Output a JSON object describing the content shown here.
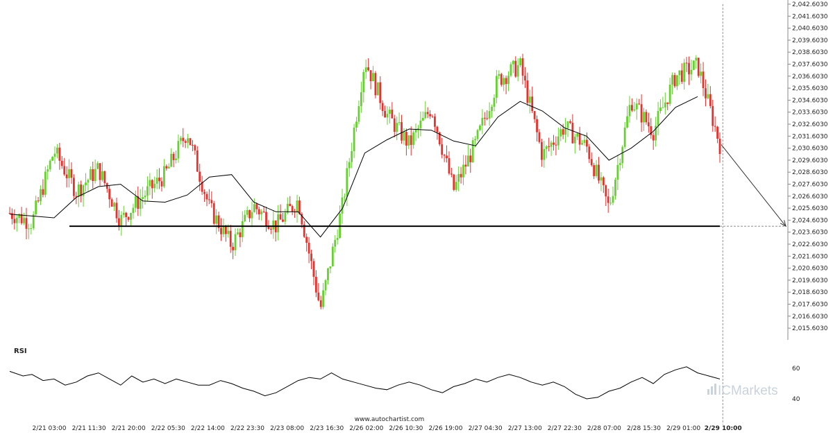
{
  "chart_data": {
    "type": "candlestick",
    "price_axis": {
      "labels": [
        "2,042.6030",
        "2,041.6030",
        "2,040.6030",
        "2,039.6030",
        "2,038.6030",
        "2,037.6030",
        "2,036.6030",
        "2,035.6030",
        "2,034.6030",
        "2,033.6030",
        "2,032.6030",
        "2,031.6030",
        "2,030.6030",
        "2,029.6030",
        "2,028.6030",
        "2,027.6030",
        "2,026.6030",
        "2,025.6030",
        "2,024.6030",
        "2,023.6030",
        "2,022.6030",
        "2,021.6030",
        "2,020.6030",
        "2,019.6030",
        "2,018.6030",
        "2,017.6030",
        "2,016.6030",
        "2,015.6030"
      ],
      "range": [
        2015.603,
        2042.603
      ]
    },
    "time_axis": {
      "labels": [
        "2/21 03:00",
        "2/21 11:30",
        "2/21 20:00",
        "2/22 05:30",
        "2/22 14:00",
        "2/22 23:30",
        "2/23 08:00",
        "2/23 16:30",
        "2/26 02:00",
        "2/26 10:30",
        "2/26 19:00",
        "2/27 04:30",
        "2/27 13:00",
        "2/27 22:30",
        "2/28 07:00",
        "2/28 15:30",
        "2/29 01:00",
        "2/29 10:00"
      ],
      "current_index": 17
    },
    "support_level": 2024.1,
    "projection": {
      "from_price": 2030.9,
      "to_price": 2024.1
    },
    "moving_average": [
      [
        0,
        2025.1
      ],
      [
        2,
        2024.8
      ],
      [
        3,
        2026.5
      ],
      [
        4,
        2027.4
      ],
      [
        5,
        2027.6
      ],
      [
        6,
        2026.2
      ],
      [
        7,
        2026.1
      ],
      [
        8,
        2026.7
      ],
      [
        9,
        2028.2
      ],
      [
        10,
        2028.4
      ],
      [
        11,
        2026.1
      ],
      [
        12,
        2025.3
      ],
      [
        13,
        2025.3
      ],
      [
        14,
        2023.2
      ],
      [
        15,
        2025.6
      ],
      [
        16,
        2030.2
      ],
      [
        17,
        2031.3
      ],
      [
        18,
        2032.2
      ],
      [
        19,
        2032.1
      ],
      [
        20,
        2031.2
      ],
      [
        21,
        2030.8
      ],
      [
        22,
        2033.2
      ],
      [
        23,
        2034.5
      ],
      [
        24,
        2033.7
      ],
      [
        25,
        2032.3
      ],
      [
        26,
        2031.6
      ],
      [
        27,
        2029.6
      ],
      [
        28,
        2030.6
      ],
      [
        29,
        2032.0
      ],
      [
        30,
        2034.0
      ],
      [
        31,
        2034.9
      ]
    ],
    "ohlc_path": [
      [
        0,
        2025.2
      ],
      [
        1,
        2024.4
      ],
      [
        2,
        2030.4
      ],
      [
        3,
        2027.0
      ],
      [
        4,
        2028.9
      ],
      [
        5,
        2024.6
      ],
      [
        6,
        2026.6
      ],
      [
        7,
        2028.4
      ],
      [
        8,
        2032.0
      ],
      [
        9,
        2025.6
      ],
      [
        10,
        2022.5
      ],
      [
        11,
        2025.8
      ],
      [
        12,
        2024.1
      ],
      [
        13,
        2026.3
      ],
      [
        14,
        2017.2
      ],
      [
        15,
        2025.9
      ],
      [
        16,
        2038.0
      ],
      [
        17,
        2033.4
      ],
      [
        18,
        2030.9
      ],
      [
        19,
        2034.0
      ],
      [
        20,
        2027.1
      ],
      [
        21,
        2031.0
      ],
      [
        22,
        2036.3
      ],
      [
        23,
        2037.5
      ],
      [
        24,
        2030.0
      ],
      [
        25,
        2032.4
      ],
      [
        26,
        2030.7
      ],
      [
        27,
        2025.6
      ],
      [
        28,
        2034.6
      ],
      [
        29,
        2032.0
      ],
      [
        30,
        2036.6
      ],
      [
        31,
        2037.5
      ],
      [
        32,
        2030.9
      ]
    ],
    "rsi": {
      "label": "RSI",
      "axis_labels": [
        "60",
        "40"
      ],
      "range": [
        35,
        65
      ],
      "values": [
        [
          0,
          58
        ],
        [
          0.6,
          55
        ],
        [
          1,
          56
        ],
        [
          1.5,
          52
        ],
        [
          2,
          53
        ],
        [
          2.5,
          49
        ],
        [
          3,
          51
        ],
        [
          3.5,
          55
        ],
        [
          4,
          57
        ],
        [
          4.5,
          53
        ],
        [
          5,
          49
        ],
        [
          5.5,
          55
        ],
        [
          6,
          51
        ],
        [
          6.5,
          53
        ],
        [
          7,
          50
        ],
        [
          7.5,
          53
        ],
        [
          8,
          51
        ],
        [
          8.5,
          49
        ],
        [
          9,
          49
        ],
        [
          9.5,
          52
        ],
        [
          10,
          50
        ],
        [
          10.5,
          47
        ],
        [
          11,
          45
        ],
        [
          11.5,
          42
        ],
        [
          12,
          44
        ],
        [
          12.5,
          48
        ],
        [
          13,
          52
        ],
        [
          13.5,
          54
        ],
        [
          14,
          53
        ],
        [
          14.5,
          57
        ],
        [
          15,
          53
        ],
        [
          15.5,
          51
        ],
        [
          16,
          49
        ],
        [
          16.5,
          47
        ],
        [
          17,
          46
        ],
        [
          17.5,
          49
        ],
        [
          18,
          51
        ],
        [
          18.5,
          49
        ],
        [
          19,
          46
        ],
        [
          19.5,
          44
        ],
        [
          20,
          48
        ],
        [
          20.5,
          50
        ],
        [
          21,
          53
        ],
        [
          21.5,
          51
        ],
        [
          22,
          54
        ],
        [
          22.5,
          56
        ],
        [
          23,
          54
        ],
        [
          23.5,
          51
        ],
        [
          24,
          49
        ],
        [
          24.5,
          51
        ],
        [
          25,
          48
        ],
        [
          25.5,
          43
        ],
        [
          26,
          40
        ],
        [
          26.5,
          41
        ],
        [
          27,
          45
        ],
        [
          27.5,
          47
        ],
        [
          28,
          51
        ],
        [
          28.5,
          54
        ],
        [
          29,
          50
        ],
        [
          29.5,
          56
        ],
        [
          30,
          59
        ],
        [
          30.5,
          61
        ],
        [
          31,
          57
        ],
        [
          31.5,
          55
        ],
        [
          32,
          53
        ]
      ]
    }
  },
  "watermark": "www.autochartist.com",
  "broker_logo": "ICMarkets",
  "colors": {
    "bull": "#66d030",
    "bear": "#e8302c",
    "ma": "#000000",
    "rsi": "#000000",
    "logo": "#c9d3dc"
  }
}
